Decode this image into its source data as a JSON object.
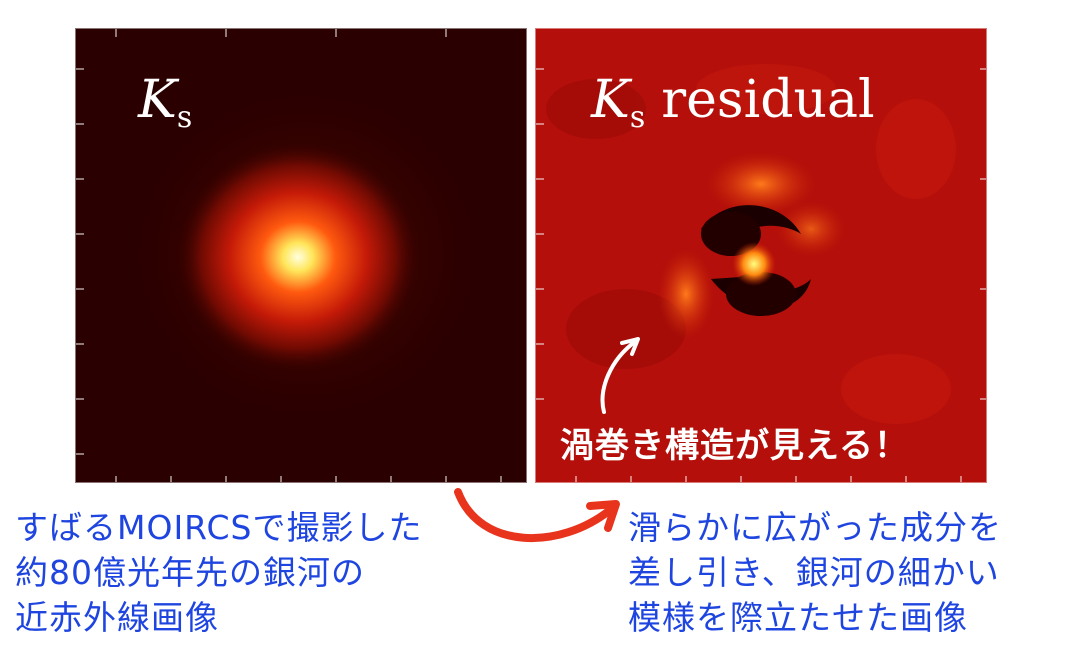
{
  "panels": {
    "left": {
      "title_main": "K",
      "title_sub": "s",
      "title_suffix": ""
    },
    "right": {
      "title_main": "K",
      "title_sub": "s",
      "title_suffix": "residual",
      "annotation": "渦巻き構造が見える！"
    }
  },
  "captions": {
    "left": [
      "すばるMOIRCSで撮影した",
      "約80億光年先の銀河の",
      "近赤外線画像"
    ],
    "right": [
      "滑らかに広がった成分を",
      "差し引き、銀河の細かい",
      "模様を際立たせた画像"
    ]
  },
  "colors": {
    "caption_blue": "#1f45e0",
    "arrow_red": "#e8341c",
    "left_background": "#2a0000",
    "right_background": "#b40f0a"
  }
}
